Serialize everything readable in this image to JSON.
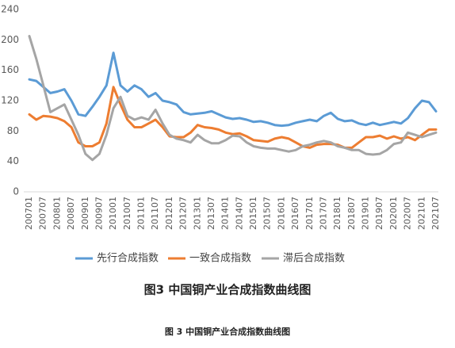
{
  "chart_data": {
    "type": "line",
    "title": "图3 中国铜产业合成指数曲线图",
    "caption": "图 3 中国铜产业合成指数曲线图",
    "categories": [
      "200701",
      null,
      "200707",
      null,
      "200801",
      null,
      "200807",
      null,
      "200901",
      null,
      "200907",
      null,
      "201001",
      null,
      "201007",
      null,
      "201101",
      null,
      "201107",
      null,
      "201201",
      null,
      "201207",
      null,
      "201301",
      null,
      "201307",
      null,
      "201401",
      null,
      "201407",
      null,
      "201501",
      null,
      "201507",
      null,
      "201601",
      null,
      "201607",
      null,
      "201701",
      null,
      "201707",
      null,
      "201801",
      null,
      "201807",
      null,
      "201901",
      null,
      "201907",
      null,
      "202001",
      null,
      "202007",
      null,
      "202101",
      null,
      "202107"
    ],
    "series": [
      {
        "name": "先行合成指数",
        "color": "#5b9bd5",
        "values": [
          148,
          146,
          138,
          130,
          132,
          135,
          120,
          102,
          100,
          112,
          125,
          140,
          183,
          140,
          132,
          140,
          135,
          125,
          130,
          120,
          118,
          115,
          105,
          102,
          103,
          104,
          106,
          102,
          98,
          96,
          97,
          95,
          92,
          93,
          91,
          88,
          87,
          88,
          91,
          93,
          95,
          93,
          100,
          104,
          96,
          93,
          94,
          90,
          88,
          91,
          88,
          90,
          92,
          90,
          97,
          110,
          120,
          118,
          106
        ]
      },
      {
        "name": "一致合成指数",
        "color": "#ed7d31",
        "values": [
          102,
          95,
          100,
          99,
          97,
          93,
          85,
          65,
          60,
          60,
          65,
          90,
          138,
          115,
          95,
          85,
          85,
          90,
          95,
          85,
          73,
          72,
          72,
          78,
          88,
          85,
          84,
          82,
          78,
          76,
          77,
          73,
          68,
          67,
          66,
          70,
          72,
          70,
          65,
          60,
          58,
          62,
          63,
          63,
          62,
          58,
          58,
          65,
          72,
          72,
          74,
          70,
          73,
          70,
          72,
          68,
          75,
          82,
          82
        ]
      },
      {
        "name": "滞后合成指数",
        "color": "#a5a5a5",
        "values": [
          205,
          175,
          140,
          105,
          110,
          115,
          95,
          75,
          50,
          42,
          50,
          75,
          110,
          125,
          100,
          95,
          98,
          95,
          108,
          90,
          75,
          70,
          68,
          65,
          75,
          68,
          64,
          64,
          68,
          74,
          73,
          65,
          60,
          58,
          57,
          57,
          55,
          53,
          55,
          60,
          62,
          65,
          67,
          65,
          60,
          58,
          55,
          55,
          50,
          49,
          50,
          55,
          63,
          65,
          78,
          75,
          72,
          75,
          78
        ]
      }
    ],
    "ylim": [
      0,
      240
    ],
    "yticks": [
      0,
      40,
      80,
      120,
      160,
      200,
      240
    ],
    "grid": false
  }
}
